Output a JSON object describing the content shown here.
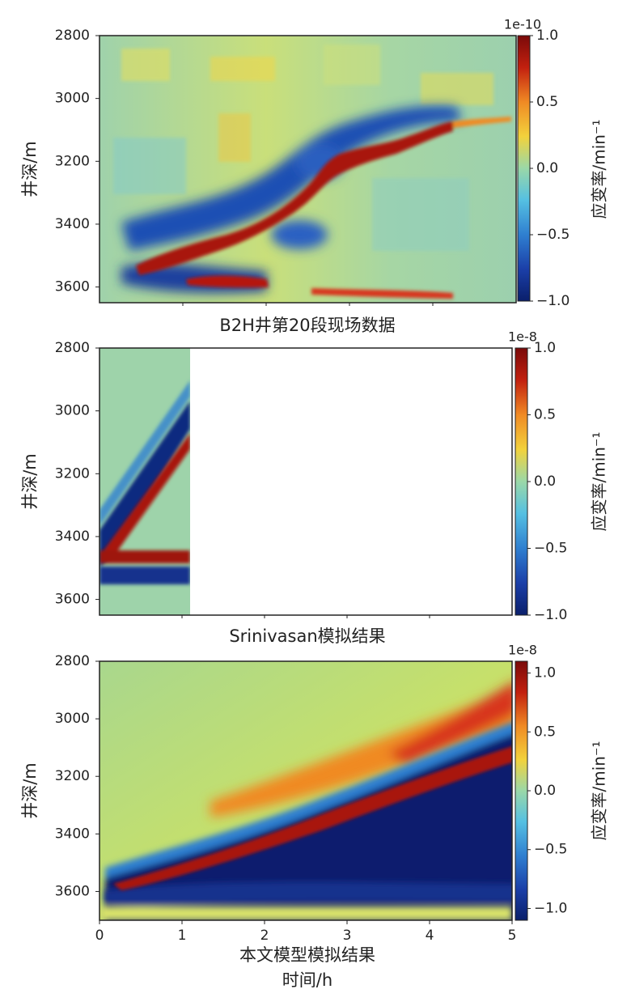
{
  "colors": {
    "jet": [
      "#0a1f6b",
      "#1b3fa8",
      "#2f7fd0",
      "#55c0e2",
      "#9ad8b0",
      "#d9e36a",
      "#f6c93a",
      "#f08a24",
      "#d8341a",
      "#a8120f",
      "#7a0a0a"
    ],
    "frame": "#222222",
    "white_mask": "#ffffff"
  },
  "chart_data": [
    {
      "type": "heatmap",
      "title": "B2H井第20段现场数据",
      "xlabel": "",
      "ylabel": "井深/m",
      "ylim": [
        2800,
        3650
      ],
      "yticks": [
        "2800",
        "3000",
        "3200",
        "3400",
        "3600"
      ],
      "colorbar": {
        "label": "应变率/min⁻¹",
        "scale_label": "1e-10",
        "range": [
          -1.0,
          1.0
        ],
        "ticks": [
          "1.0",
          "0.5",
          "0.0",
          "−0.5",
          "−1.0"
        ]
      },
      "features": [
        {
          "name": "main extension band (red)",
          "from_depth": 3570,
          "to_depth": 3080,
          "value": 1.0
        },
        {
          "name": "compression halo (blue)",
          "value": -1.0
        },
        {
          "name": "deep red streak",
          "depth": 3620,
          "value": 0.8
        }
      ]
    },
    {
      "type": "heatmap",
      "title": "Srinivasan模拟结果",
      "xlabel": "",
      "ylabel": "井深/m",
      "ylim": [
        2800,
        3650
      ],
      "yticks": [
        "2800",
        "3000",
        "3200",
        "3400",
        "3600"
      ],
      "colorbar": {
        "label": "应变率/min⁻¹",
        "scale_label": "1e-8",
        "range": [
          -1.0,
          1.0
        ],
        "ticks": [
          "1.0",
          "0.5",
          "0.0",
          "−0.5",
          "−1.0"
        ]
      },
      "features": [
        {
          "name": "fracture hit depth (red)",
          "depth": 3480,
          "value": 1.0
        },
        {
          "name": "diagonal extension band",
          "from_depth": 3440,
          "to_depth": 3100,
          "value": 1.0
        }
      ]
    },
    {
      "type": "heatmap",
      "title": "",
      "xlabel": "时间/h",
      "ylabel": "井深/m",
      "ylim": [
        2800,
        3700
      ],
      "xlim": [
        0,
        5
      ],
      "xticks": [
        "0",
        "1",
        "2",
        "3",
        "4",
        "5"
      ],
      "yticks": [
        "2800",
        "3000",
        "3200",
        "3400",
        "3600"
      ],
      "caption": "本文模型模拟结果",
      "colorbar": {
        "label": "应变率/min⁻¹",
        "scale_label": "1e-8",
        "range": [
          -1.1,
          1.1
        ],
        "ticks": [
          "1.0",
          "0.5",
          "0.0",
          "−0.5",
          "−1.0"
        ]
      },
      "features": [
        {
          "name": "main extension band (red)",
          "from_time": 0.15,
          "from_depth": 3580,
          "to_time": 5,
          "to_depth": 3130,
          "value": 1.0
        },
        {
          "name": "upper compression band (blue)",
          "value": -1.0
        },
        {
          "name": "lower compression band (blue)",
          "depth": 3625,
          "value": -1.0
        }
      ]
    }
  ]
}
